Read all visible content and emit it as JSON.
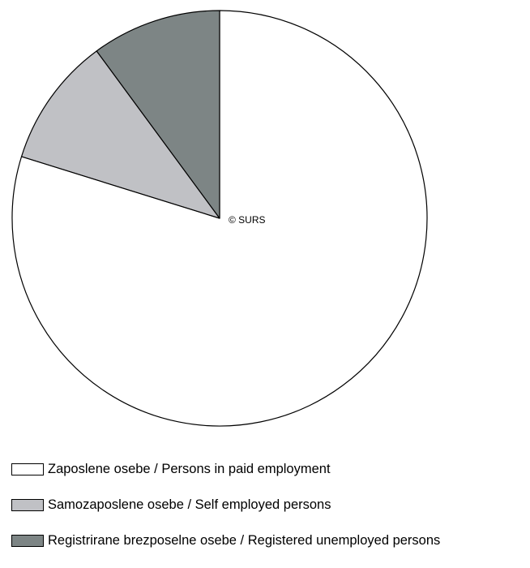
{
  "chart_data": {
    "type": "pie",
    "title": "",
    "annotation": "© SURS",
    "slices": [
      {
        "label": "Zaposlene osebe / Persons in paid employment",
        "value": 79.8,
        "color": "#ffffff"
      },
      {
        "label": "Samozaposlene osebe / Self employed persons",
        "value": 10.1,
        "color": "#c0c1c5"
      },
      {
        "label": "Registrirane brezposelne osebe / Registered unemployed persons",
        "value": 10.1,
        "color": "#7d8585"
      }
    ],
    "legend_position": "bottom-left",
    "start": "12 o'clock",
    "direction": "clockwise"
  }
}
